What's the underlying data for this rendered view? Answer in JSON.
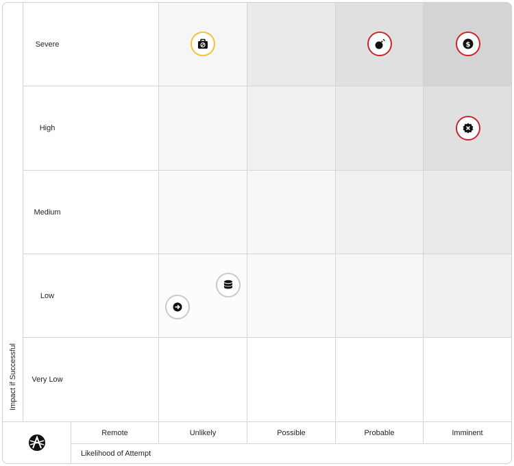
{
  "y_axis": {
    "title": "Impact if Successful",
    "rows": [
      "Severe",
      "High",
      "Medium",
      "Low",
      "Very Low"
    ]
  },
  "x_axis": {
    "title": "Likelihood of Attempt",
    "columns": [
      "Remote",
      "Unlikely",
      "Possible",
      "Probable",
      "Imminent"
    ]
  },
  "cell_shading": [
    [
      "#ffffff",
      "#f6f6f6",
      "#eaeaea",
      "#e0e0e0",
      "#d4d4d4"
    ],
    [
      "#ffffff",
      "#f6f6f6",
      "#f0f0f0",
      "#eaeaea",
      "#e0e0e0"
    ],
    [
      "#ffffff",
      "#f9f9f9",
      "#f6f6f6",
      "#f0f0f0",
      "#eaeaea"
    ],
    [
      "#ffffff",
      "#fcfcfc",
      "#f9f9f9",
      "#f6f6f6",
      "#f0f0f0"
    ],
    [
      "#ffffff",
      "#ffffff",
      "#ffffff",
      "#ffffff",
      "#ffffff"
    ]
  ],
  "risks": [
    {
      "icon": "briefcase-blocked-icon",
      "impact": "Severe",
      "likelihood": "Unlikely",
      "ring_color": "#f2c230"
    },
    {
      "icon": "bomb-icon",
      "impact": "Severe",
      "likelihood": "Probable",
      "ring_color": "#cc2229"
    },
    {
      "icon": "dollar-coin-icon",
      "impact": "Severe",
      "likelihood": "Imminent",
      "ring_color": "#cc2229"
    },
    {
      "icon": "badge-x-icon",
      "impact": "High",
      "likelihood": "Imminent",
      "ring_color": "#cc2229"
    },
    {
      "icon": "database-icon",
      "impact": "Low",
      "likelihood": "Unlikely",
      "ring_color": "#c8c8c8"
    },
    {
      "icon": "sign-in-icon",
      "impact": "Low",
      "likelihood": "Unlikely",
      "ring_color": "#c8c8c8"
    }
  ]
}
